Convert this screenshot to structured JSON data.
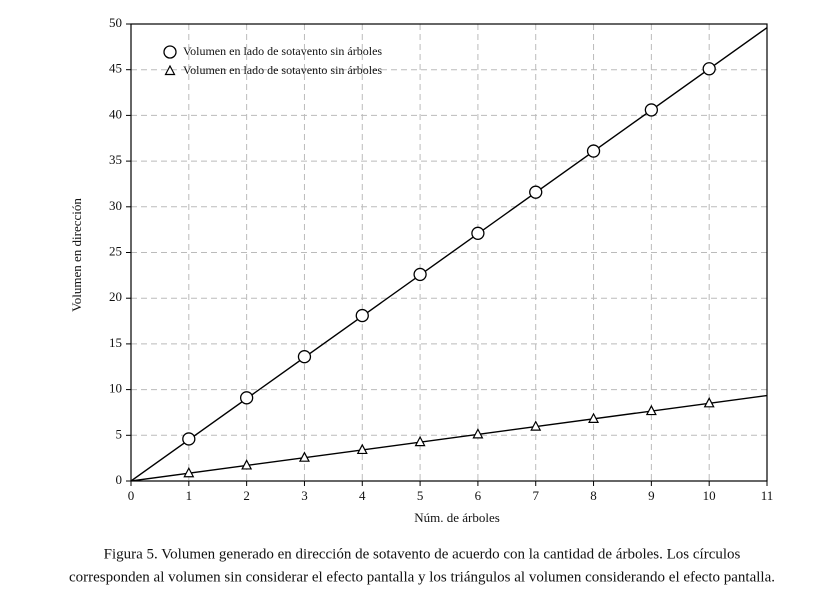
{
  "chart_data": {
    "type": "line",
    "x_label": "Núm. de árboles",
    "y_label": "Volumen en dirección",
    "caption": [
      "Figura 5. Volumen generado en dirección de sotavento de acuerdo con la cantidad de árboles. Los círculos",
      "corresponden al volumen sin considerar el efecto pantalla y los triángulos al volumen considerando el efecto pantalla."
    ],
    "x": [
      1,
      2,
      3,
      4,
      5,
      6,
      7,
      8,
      9,
      10
    ],
    "series": [
      {
        "name": "Volumen en lado de sotavento sin árboles",
        "marker": "circle",
        "color": "#000000",
        "values": [
          4.6,
          9.1,
          13.6,
          18.1,
          22.6,
          27.1,
          31.6,
          36.1,
          40.6,
          45.1
        ]
      },
      {
        "name": "Volumen en lado de sotavento sin árboles",
        "marker": "triangle",
        "color": "#000000",
        "values": [
          0.85,
          1.7,
          2.55,
          3.4,
          4.25,
          5.1,
          5.95,
          6.8,
          7.65,
          8.5
        ]
      }
    ],
    "fit_lines": [
      {
        "x": [
          0,
          11
        ],
        "values": [
          0,
          49.6
        ]
      },
      {
        "x": [
          0,
          11
        ],
        "values": [
          0,
          9.35
        ]
      }
    ],
    "xlim": [
      0,
      11
    ],
    "ylim": [
      0,
      50
    ],
    "xticks": [
      0,
      1,
      2,
      3,
      4,
      5,
      6,
      7,
      8,
      9,
      10,
      11
    ],
    "yticks": [
      0,
      5,
      10,
      15,
      20,
      25,
      30,
      35,
      40,
      45,
      50
    ],
    "grid": true,
    "legend": "upper-left"
  }
}
